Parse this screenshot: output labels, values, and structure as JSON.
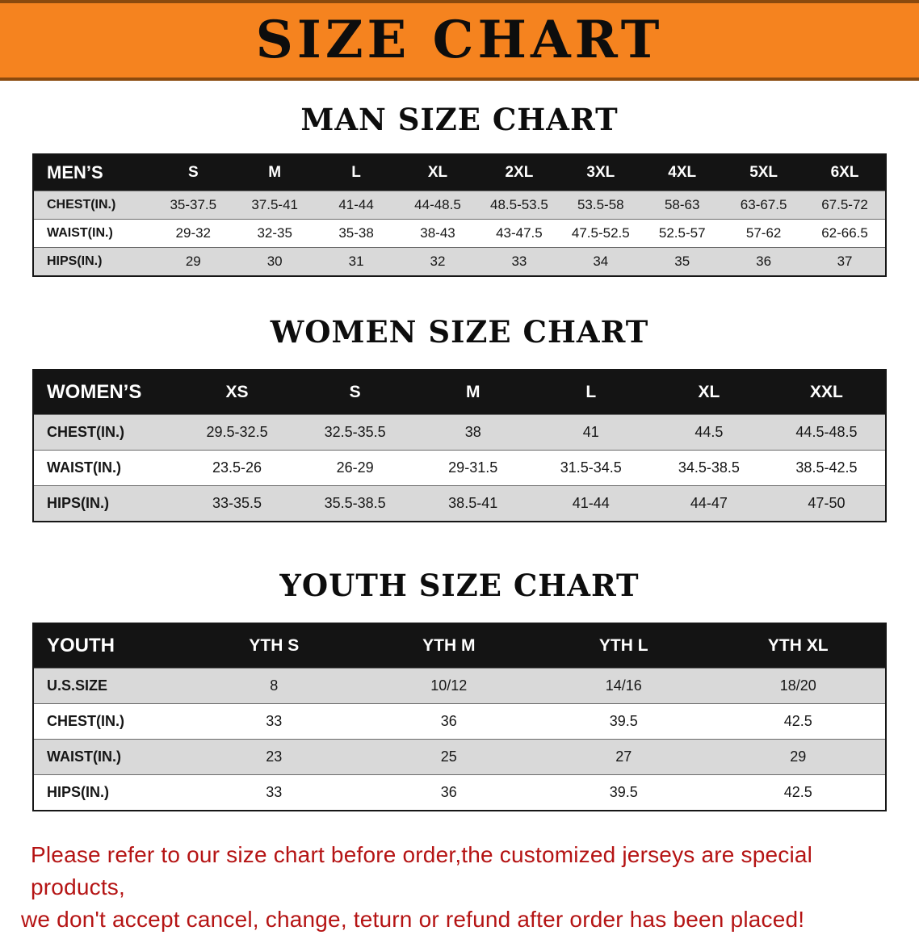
{
  "banner": {
    "title": "SIZE CHART"
  },
  "colors": {
    "banner_bg": "#f5831f",
    "banner_edge": "#8a4a0e",
    "header_bg": "#141414",
    "row_alt": "#d9d9d9",
    "note_red": "#b51414"
  },
  "sections": [
    {
      "heading": "MAN SIZE CHART",
      "columns": [
        "MEN’S",
        "S",
        "M",
        "L",
        "XL",
        "2XL",
        "3XL",
        "4XL",
        "5XL",
        "6XL"
      ],
      "rows": [
        [
          "CHEST(IN.)",
          "35-37.5",
          "37.5-41",
          "41-44",
          "44-48.5",
          "48.5-53.5",
          "53.5-58",
          "58-63",
          "63-67.5",
          "67.5-72"
        ],
        [
          "WAIST(IN.)",
          "29-32",
          "32-35",
          "35-38",
          "38-43",
          "43-47.5",
          "47.5-52.5",
          "52.5-57",
          "57-62",
          "62-66.5"
        ],
        [
          "HIPS(IN.)",
          "29",
          "30",
          "31",
          "32",
          "33",
          "34",
          "35",
          "36",
          "37"
        ]
      ]
    },
    {
      "heading": "WOMEN SIZE CHART",
      "columns": [
        "WOMEN’S",
        "XS",
        "S",
        "M",
        "L",
        "XL",
        "XXL"
      ],
      "rows": [
        [
          "CHEST(IN.)",
          "29.5-32.5",
          "32.5-35.5",
          "38",
          "41",
          "44.5",
          "44.5-48.5"
        ],
        [
          "WAIST(IN.)",
          "23.5-26",
          "26-29",
          "29-31.5",
          "31.5-34.5",
          "34.5-38.5",
          "38.5-42.5"
        ],
        [
          "HIPS(IN.)",
          "33-35.5",
          "35.5-38.5",
          "38.5-41",
          "41-44",
          "44-47",
          "47-50"
        ]
      ]
    },
    {
      "heading": "YOUTH SIZE CHART",
      "columns": [
        "YOUTH",
        "YTH S",
        "YTH M",
        "YTH L",
        "YTH XL"
      ],
      "rows": [
        [
          "U.S.SIZE",
          "8",
          "10/12",
          "14/16",
          "18/20"
        ],
        [
          "CHEST(IN.)",
          "33",
          "36",
          "39.5",
          "42.5"
        ],
        [
          "WAIST(IN.)",
          "23",
          "25",
          "27",
          "29"
        ],
        [
          "HIPS(IN.)",
          "33",
          "36",
          "39.5",
          "42.5"
        ]
      ]
    }
  ],
  "note": {
    "line1": "Please refer to our size chart before order,the customized jerseys are special products,",
    "line2": "we don't accept cancel, change, teturn or refund after order has been placed!"
  }
}
